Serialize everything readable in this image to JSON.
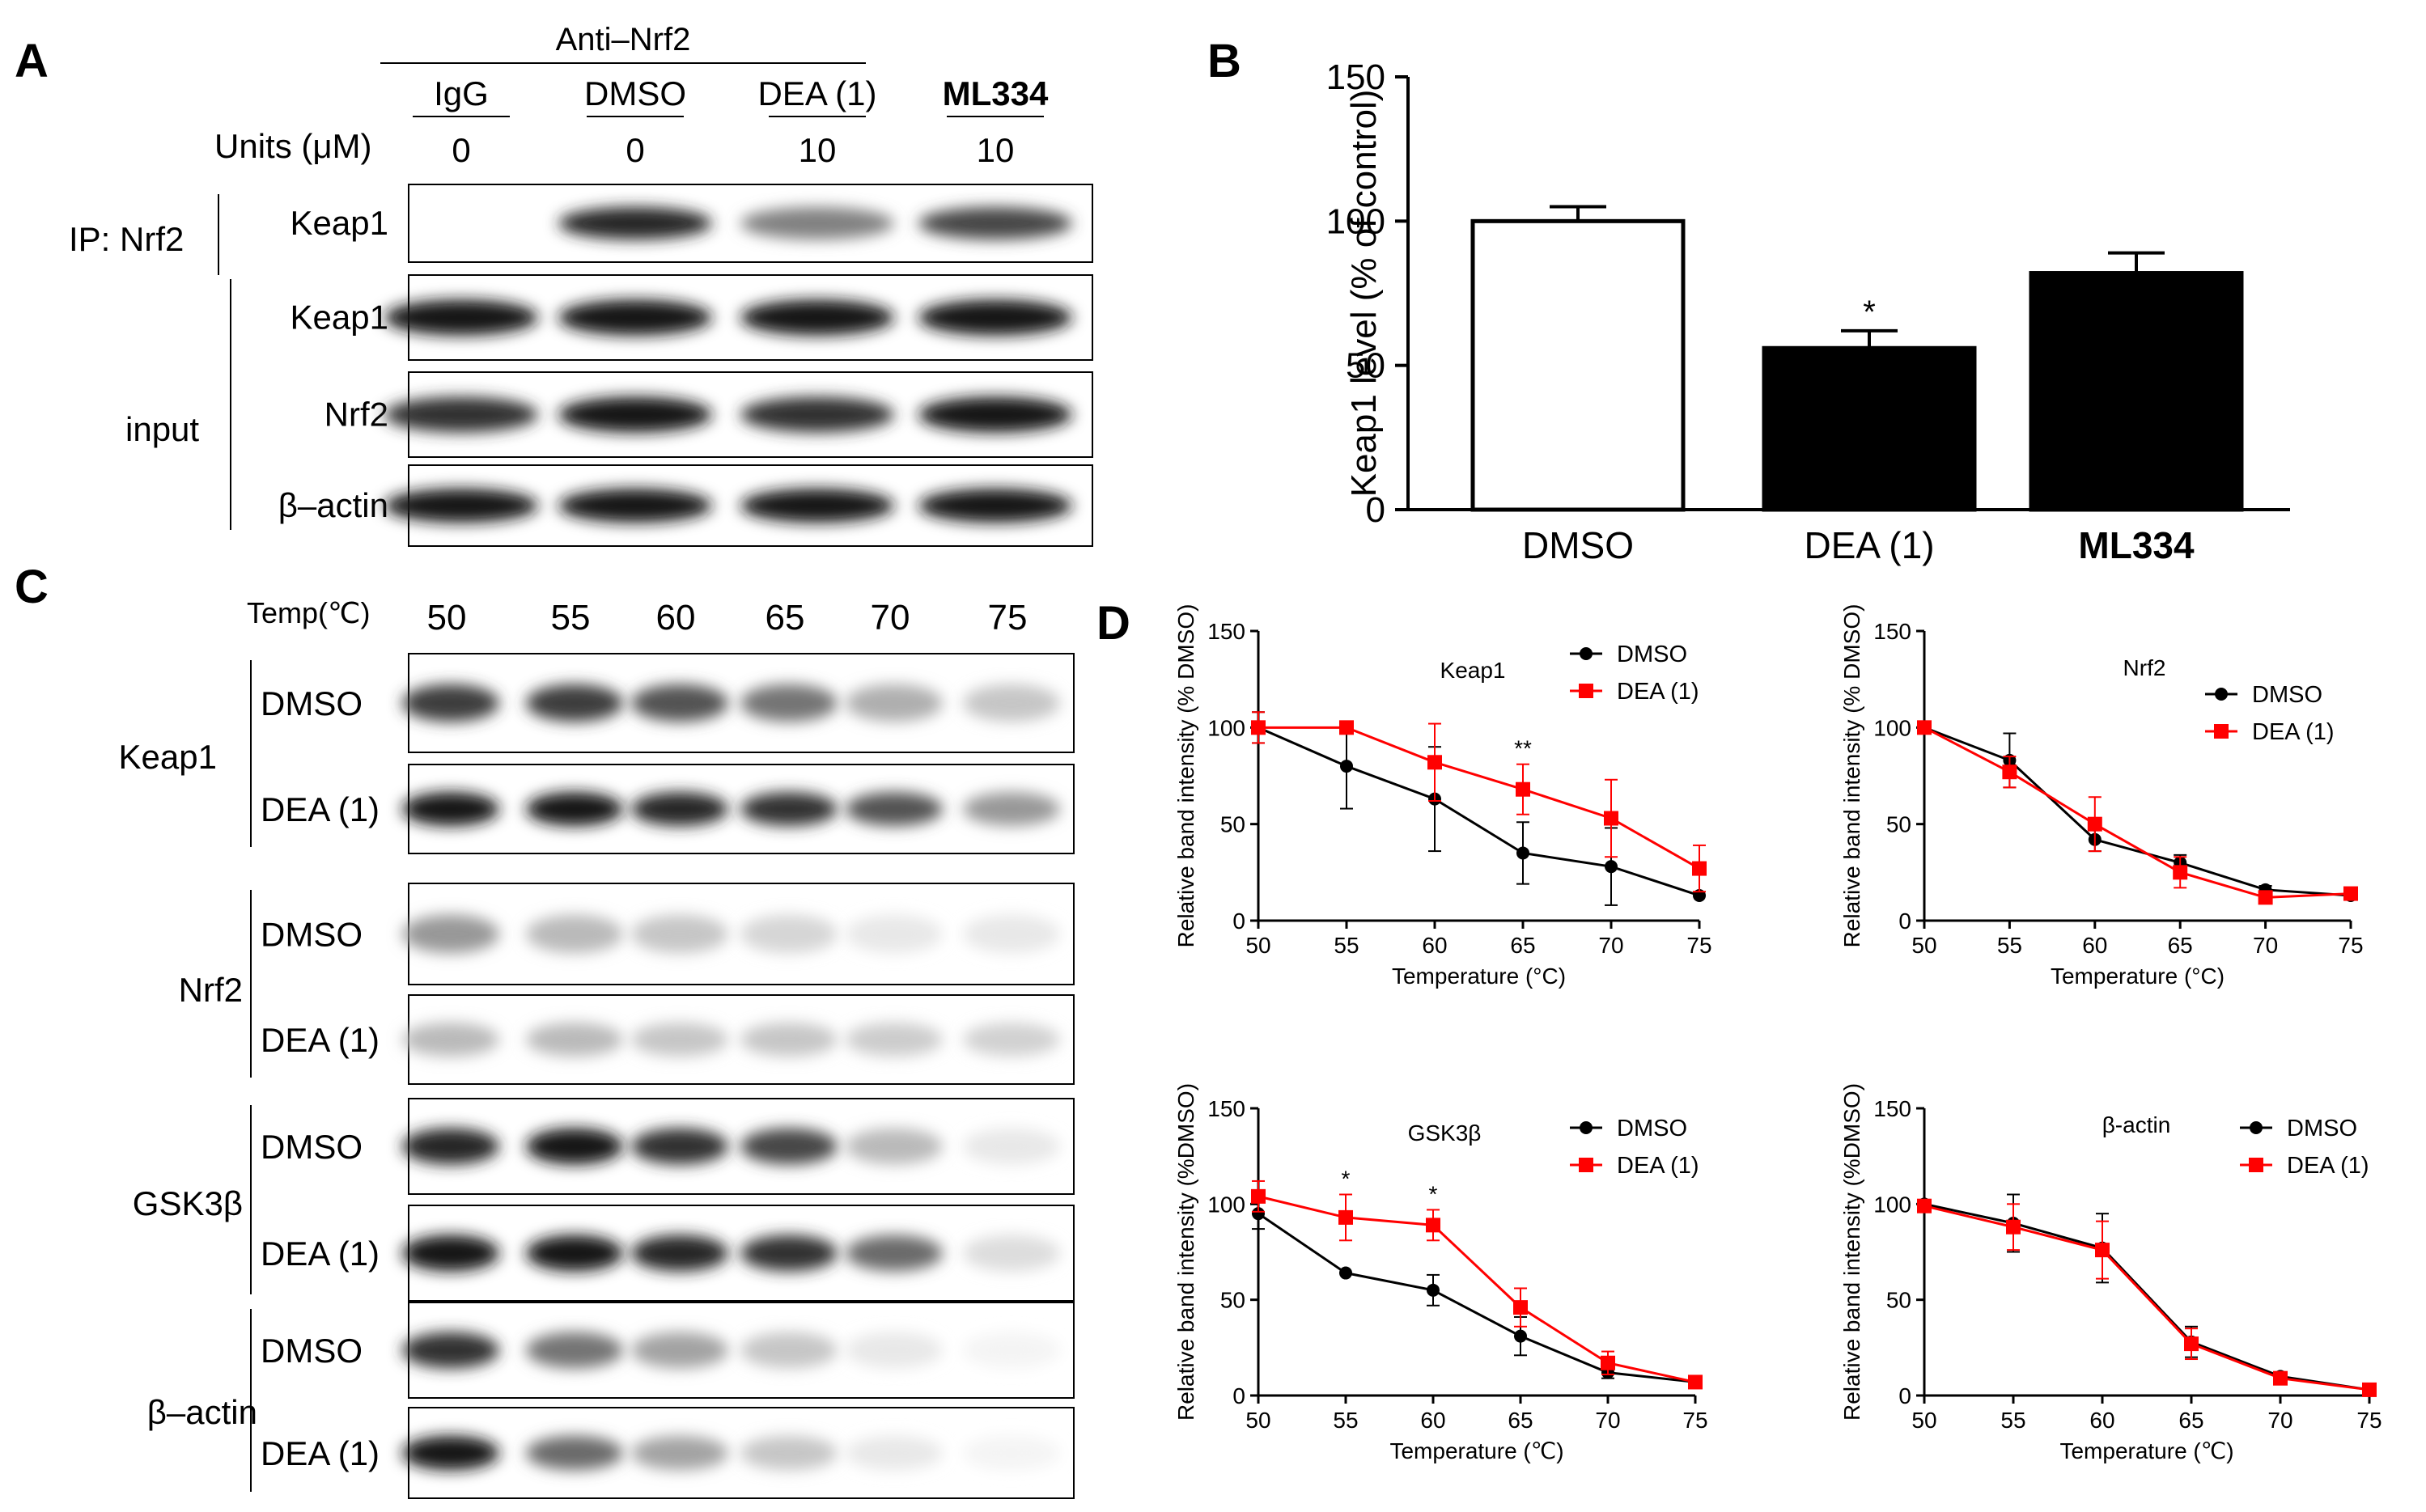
{
  "panelA": {
    "letter": "A",
    "header": "Anti–Nrf2",
    "groups": [
      "IgG",
      "DMSO",
      "DEA (1)",
      "ML334"
    ],
    "units_label": "Units (μM)",
    "units": [
      "0",
      "0",
      "10",
      "10"
    ],
    "ip_label": "IP:  Nrf2",
    "input_label": "input",
    "rows": [
      "Keap1",
      "Keap1",
      "Nrf2",
      "β–actin"
    ],
    "band_intensity": [
      [
        0.0,
        0.95,
        0.55,
        0.8
      ],
      [
        1,
        1,
        1,
        1
      ],
      [
        0.9,
        1,
        0.9,
        1
      ],
      [
        1,
        1,
        1,
        1
      ]
    ]
  },
  "panelB": {
    "letter": "B",
    "significance": "*",
    "chart_data": {
      "type": "bar",
      "categories": [
        "DMSO",
        "DEA (1)",
        "ML334"
      ],
      "values": [
        100,
        56,
        82
      ],
      "errors": [
        5,
        6,
        7
      ],
      "fill_colors": [
        "#ffffff",
        "#000000",
        "#000000"
      ],
      "ylabel": "Keap1 level (% of control)",
      "ylim": [
        0,
        150
      ],
      "yticks": [
        0,
        50,
        100,
        150
      ]
    }
  },
  "panelC": {
    "letter": "C",
    "temp_label": "Temp(℃)",
    "temps": [
      "50",
      "55",
      "60",
      "65",
      "70",
      "75"
    ],
    "proteins": [
      "Keap1",
      "Nrf2",
      "GSK3β",
      "β–actin"
    ],
    "conditions": [
      "DMSO",
      "DEA (1)"
    ],
    "band_intensity": [
      [
        [
          0.85,
          0.85,
          0.75,
          0.6,
          0.35,
          0.25
        ],
        [
          1,
          1,
          0.95,
          0.9,
          0.75,
          0.45
        ]
      ],
      [
        [
          0.45,
          0.3,
          0.25,
          0.18,
          0.1,
          0.1
        ],
        [
          0.3,
          0.3,
          0.25,
          0.25,
          0.22,
          0.2
        ]
      ],
      [
        [
          0.95,
          1,
          0.9,
          0.8,
          0.3,
          0.1
        ],
        [
          1,
          1,
          0.95,
          0.9,
          0.65,
          0.15
        ]
      ],
      [
        [
          0.9,
          0.6,
          0.4,
          0.25,
          0.1,
          0.05
        ],
        [
          1,
          0.65,
          0.4,
          0.25,
          0.1,
          0.05
        ]
      ]
    ]
  },
  "panelD": {
    "letter": "D",
    "chart_data": [
      {
        "type": "line",
        "title": "Keap1",
        "xlabel": "Temperature (°C)",
        "ylabel": "Relative band intensity (% DMSO)",
        "x": [
          50,
          55,
          60,
          65,
          70,
          75
        ],
        "xlim": [
          50,
          75
        ],
        "ylim": [
          0,
          150
        ],
        "yticks": [
          0,
          50,
          100,
          150
        ],
        "series": [
          {
            "name": "DMSO",
            "color": "#000000",
            "values": [
              100,
              80,
              63,
              35,
              28,
              13
            ],
            "errors": [
              8,
              22,
              27,
              16,
              20,
              0
            ]
          },
          {
            "name": "DEA (1)",
            "color": "#ff0000",
            "values": [
              100,
              100,
              82,
              68,
              53,
              27
            ],
            "errors": [
              8,
              0,
              20,
              13,
              20,
              12
            ]
          }
        ],
        "annotations": [
          {
            "x": 65,
            "text": "**"
          }
        ]
      },
      {
        "type": "line",
        "title": "Nrf2",
        "xlabel": "Temperature (°C)",
        "ylabel": "Relative band intensity (% DMSO)",
        "x": [
          50,
          55,
          60,
          65,
          70,
          75
        ],
        "xlim": [
          50,
          75
        ],
        "ylim": [
          0,
          150
        ],
        "yticks": [
          0,
          50,
          100,
          150
        ],
        "series": [
          {
            "name": "DMSO",
            "color": "#000000",
            "values": [
              100,
              83,
              42,
              30,
              16,
              13
            ],
            "errors": [
              0,
              14,
              6,
              4,
              2,
              2
            ]
          },
          {
            "name": "DEA (1)",
            "color": "#ff0000",
            "values": [
              100,
              77,
              50,
              25,
              12,
              14
            ],
            "errors": [
              0,
              8,
              14,
              8,
              2,
              2
            ]
          }
        ],
        "annotations": []
      },
      {
        "type": "line",
        "title": "GSK3β",
        "xlabel": "Temperature (℃)",
        "ylabel": "Relative band intensity (%DMSO)",
        "x": [
          50,
          55,
          60,
          65,
          70,
          75
        ],
        "xlim": [
          50,
          75
        ],
        "ylim": [
          0,
          150
        ],
        "yticks": [
          0,
          50,
          100,
          150
        ],
        "series": [
          {
            "name": "DMSO",
            "color": "#000000",
            "values": [
              95,
              64,
              55,
              31,
              12,
              7
            ],
            "errors": [
              8,
              0,
              8,
              10,
              3,
              1
            ]
          },
          {
            "name": "DEA (1)",
            "color": "#ff0000",
            "values": [
              104,
              93,
              89,
              46,
              17,
              7
            ],
            "errors": [
              8,
              12,
              8,
              10,
              6,
              1
            ]
          }
        ],
        "annotations": [
          {
            "x": 55,
            "text": "*"
          },
          {
            "x": 60,
            "text": "*"
          }
        ]
      },
      {
        "type": "line",
        "title": "β-actin",
        "xlabel": "Temperature (℃)",
        "ylabel": "Relative band intensity (%DMSO)",
        "x": [
          50,
          55,
          60,
          65,
          70,
          75
        ],
        "xlim": [
          50,
          75
        ],
        "ylim": [
          0,
          150
        ],
        "yticks": [
          0,
          50,
          100,
          150
        ],
        "series": [
          {
            "name": "DMSO",
            "color": "#000000",
            "values": [
              100,
              90,
              77,
              28,
              10,
              3
            ],
            "errors": [
              2,
              15,
              18,
              8,
              2,
              1
            ]
          },
          {
            "name": "DEA (1)",
            "color": "#ff0000",
            "values": [
              99,
              88,
              76,
              27,
              9,
              3
            ],
            "errors": [
              2,
              12,
              15,
              8,
              2,
              1
            ]
          }
        ],
        "annotations": []
      }
    ]
  }
}
